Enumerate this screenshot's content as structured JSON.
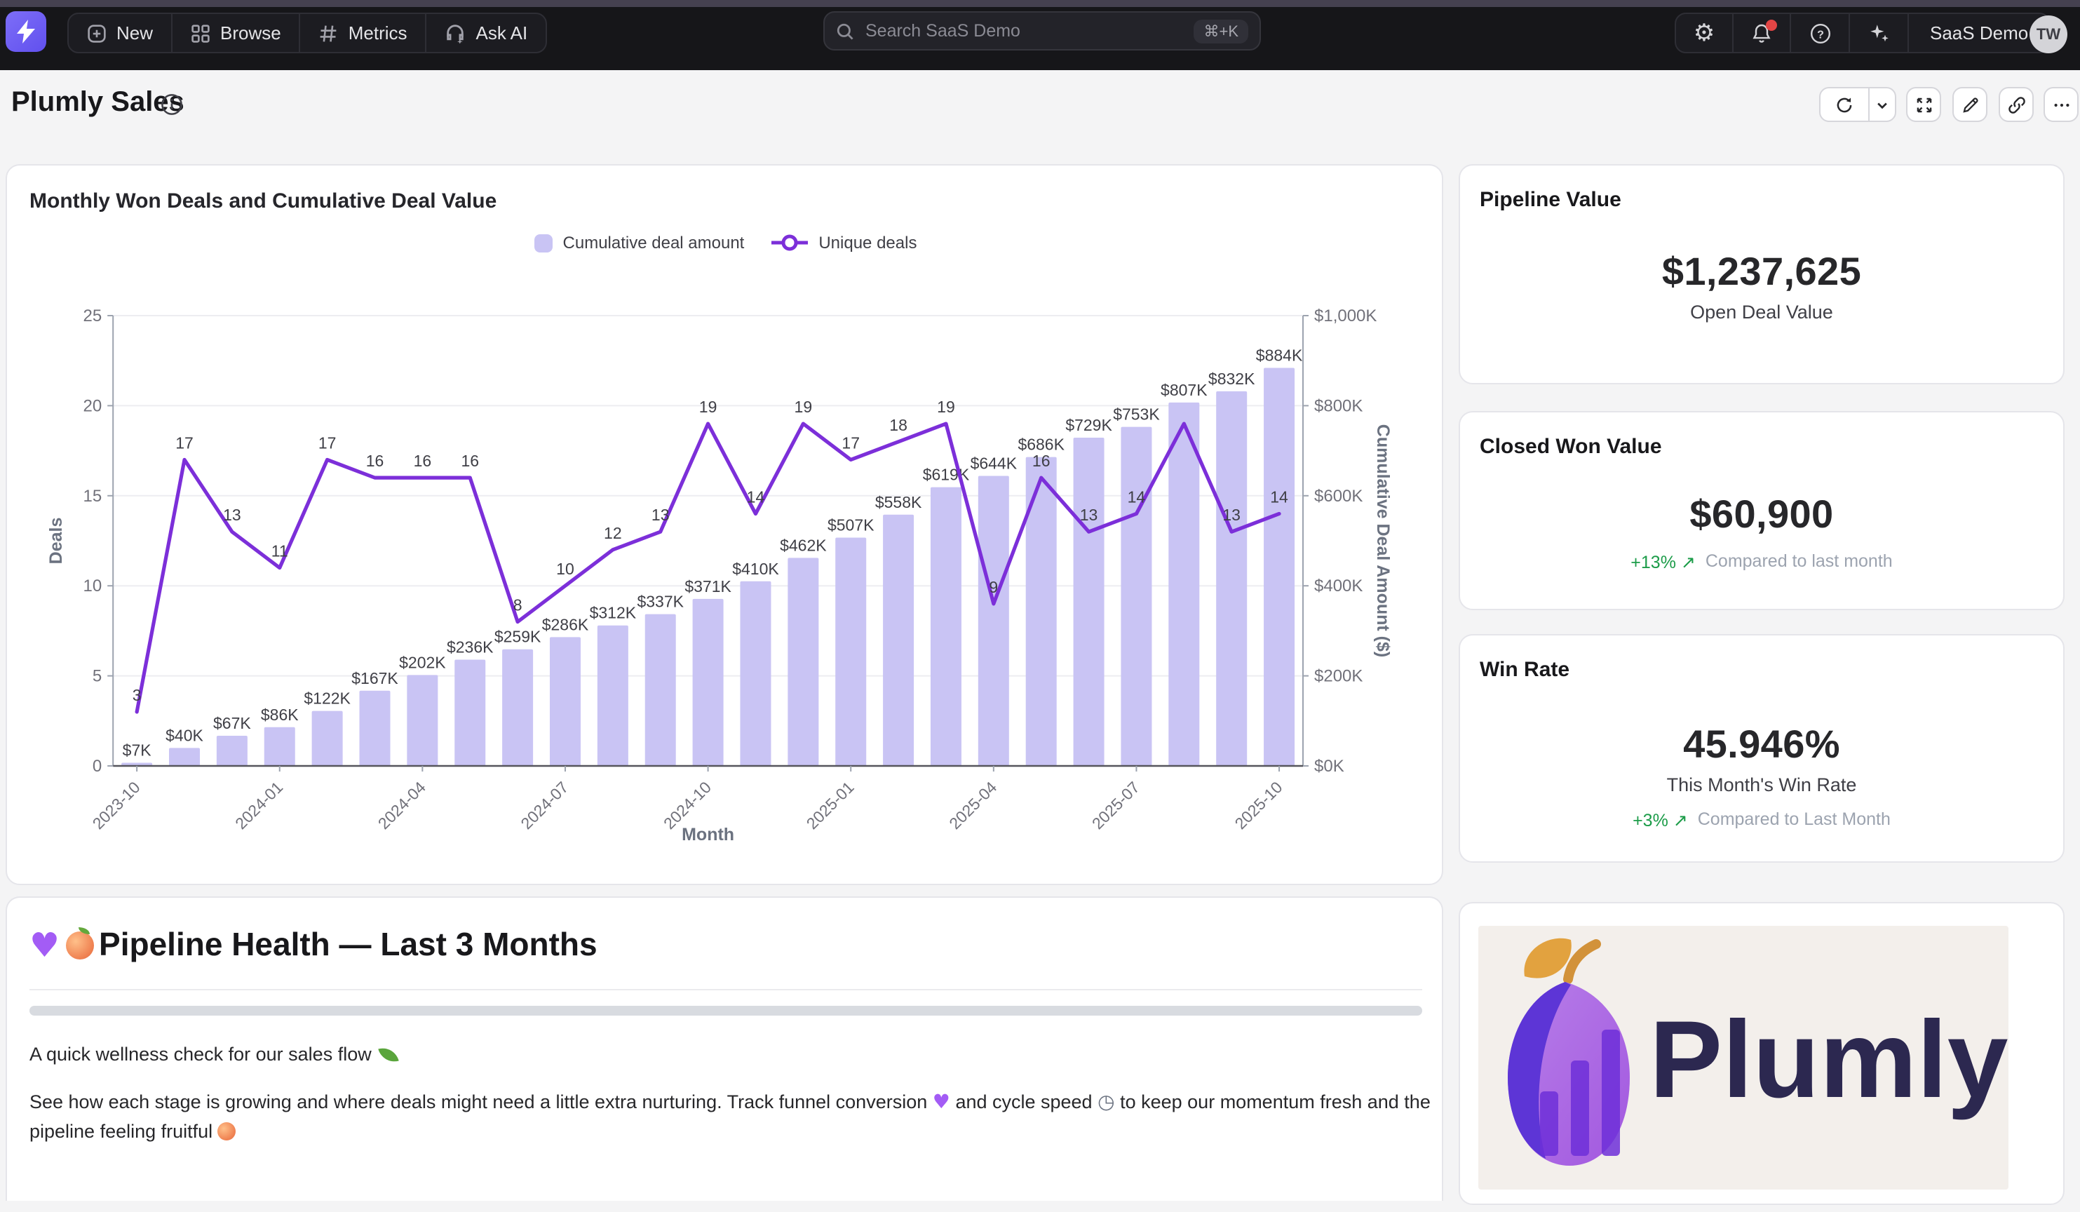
{
  "colors": {
    "accent_line": "#7c2fd9",
    "bar_fill": "#c9c4f4",
    "nav_bg": "#161619",
    "page_bg": "#f4f4f5",
    "positive_green": "#1c9c49",
    "brand_navy": "#2c2850",
    "logo_purple_dark": "#5d35d6",
    "logo_purple_light": "#a869e4",
    "leaf_orange": "#e2a23f"
  },
  "nav": {
    "logo_icon": "lightning-bolt",
    "menu": [
      {
        "icon": "plus-square-icon",
        "label": "New"
      },
      {
        "icon": "grid-icon",
        "label": "Browse"
      },
      {
        "icon": "hash-icon",
        "label": "Metrics"
      },
      {
        "icon": "headset-icon",
        "label": "Ask AI"
      }
    ],
    "search": {
      "placeholder": "Search SaaS Demo",
      "shortcut": "⌘+K"
    },
    "right": {
      "icons": [
        "gear",
        "bell",
        "help",
        "sparkles"
      ],
      "bell_has_badge": true,
      "workspace": "SaaS Demo",
      "avatar_initials": "TW"
    }
  },
  "header": {
    "title": "Plumly Sales"
  },
  "chart_card": {
    "title": "Monthly Won Deals and Cumulative Deal Value"
  },
  "chart_data": {
    "type": "bar+line",
    "title": "Monthly Won Deals and Cumulative Deal Value",
    "x": [
      "2023-10",
      "2023-11",
      "2023-12",
      "2024-01",
      "2024-02",
      "2024-03",
      "2024-04",
      "2024-05",
      "2024-06",
      "2024-07",
      "2024-08",
      "2024-09",
      "2024-10",
      "2024-11",
      "2024-12",
      "2025-01",
      "2025-02",
      "2025-03",
      "2025-04",
      "2025-05",
      "2025-06",
      "2025-07",
      "2025-08",
      "2025-09",
      "2025-10"
    ],
    "x_tick_indices": [
      0,
      3,
      6,
      9,
      12,
      15,
      18,
      21,
      24
    ],
    "x_tick_labels": [
      "2023-10",
      "2024-01",
      "2024-04",
      "2024-07",
      "2024-10",
      "2025-01",
      "2025-04",
      "2025-07",
      "2025-10"
    ],
    "xlabel": "Month",
    "series": [
      {
        "name": "Cumulative deal amount",
        "type": "bar",
        "axis": "right",
        "values_k": [
          7,
          40,
          67,
          86,
          122,
          167,
          202,
          236,
          259,
          286,
          312,
          337,
          371,
          410,
          462,
          507,
          558,
          619,
          644,
          686,
          729,
          753,
          807,
          832,
          884
        ],
        "labels": [
          "$7K",
          "$40K",
          "$67K",
          "$86K",
          "$122K",
          "$167K",
          "$202K",
          "$236K",
          "$259K",
          "$286K",
          "$312K",
          "$337K",
          "$371K",
          "$410K",
          "$462K",
          "$507K",
          "$558K",
          "$619K",
          "$644K",
          "$686K",
          "$729K",
          "$753K",
          "$807K",
          "$832K",
          "$884K"
        ]
      },
      {
        "name": "Unique deals",
        "type": "line",
        "axis": "left",
        "values": [
          3,
          17,
          13,
          11,
          17,
          16,
          16,
          16,
          8,
          10,
          12,
          13,
          19,
          14,
          19,
          17,
          18,
          19,
          9,
          16,
          13,
          14,
          19,
          13,
          14
        ],
        "labels": [
          "3",
          "17",
          "13",
          "11",
          "17",
          "16",
          "16",
          "16",
          "8",
          "10",
          "12",
          "13",
          "19",
          "14",
          "19",
          "17",
          "18",
          "19",
          "9",
          "16",
          "13",
          "14",
          "",
          "13",
          "14"
        ]
      }
    ],
    "left_axis": {
      "label": "Deals",
      "min": 0,
      "max": 25,
      "ticks": [
        0,
        5,
        10,
        15,
        20,
        25
      ]
    },
    "right_axis": {
      "label": "Cumulative Deal Amount ($)",
      "min": 0,
      "max": 1000,
      "ticks_k": [
        0,
        200,
        400,
        600,
        800,
        1000
      ],
      "tick_labels": [
        "$0K",
        "$200K",
        "$400K",
        "$600K",
        "$800K",
        "$1,000K"
      ]
    },
    "grid": "horizontal",
    "legend_position": "top-center"
  },
  "kpis": [
    {
      "title": "Pipeline Value",
      "value": "$1,237,625",
      "subtitle": "Open Deal Value"
    },
    {
      "title": "Closed Won Value",
      "value": "$60,900",
      "delta": "+13%",
      "delta_arrow": "↗",
      "delta_note": "Compared to last month"
    },
    {
      "title": "Win Rate",
      "value": "45.946%",
      "subtitle": "This Month's Win Rate",
      "delta": "+3%",
      "delta_arrow": "↗",
      "delta_note": "Compared to Last Month"
    }
  ],
  "pipeline_health": {
    "title": "Pipeline Health — Last 3 Months",
    "title_emojis": [
      "purple-heart",
      "peach"
    ],
    "intro": "A quick wellness check for our sales flow",
    "intro_emoji": "herb-leaf",
    "body_part1": "See how each stage is growing and where deals might need a little extra nurturing. Track funnel conversion",
    "body_emoji1": "purple-heart",
    "body_part2": "and cycle speed",
    "body_emoji2": "stopwatch",
    "body_part3": "to keep our momentum fresh and the pipeline feeling fruitful",
    "body_emoji3": "peach"
  },
  "logo_card": {
    "brand": "Plumly"
  }
}
